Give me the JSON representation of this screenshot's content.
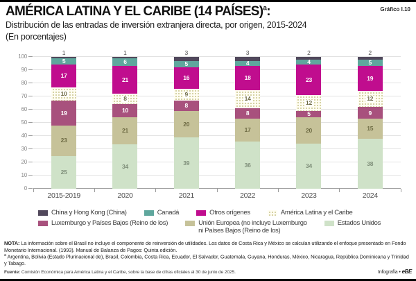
{
  "header": {
    "title": "AMÉRICA LATINA Y EL CARIBE (14 PAÍSES)",
    "title_marker": "a",
    "title_suffix": ":",
    "graphic_label": "Gráfico I.10",
    "subtitle": "Distribución de las entradas de inversión extranjera directa, por origen, 2015-2024",
    "unit_line": "(En porcentajes)"
  },
  "chart_data": {
    "type": "bar",
    "stacked": true,
    "title": "Distribución de las entradas de inversión extranjera directa, por origen, 2015-2024",
    "unit": "porcentajes",
    "xlabel": "",
    "ylabel": "",
    "ylim": [
      0,
      100
    ],
    "yticks": [
      0,
      10,
      20,
      30,
      40,
      50,
      60,
      70,
      80,
      90,
      100
    ],
    "grid": true,
    "legend_position": "bottom",
    "categories": [
      "2015-2019",
      "2020",
      "2021",
      "2022",
      "2023",
      "2024"
    ],
    "series": [
      {
        "key": "estados-unidos",
        "name": "Estados Unidos",
        "color": "#cfe2c8",
        "label_color": "#7f8f7a",
        "values": [
          25,
          34,
          39,
          36,
          34,
          38
        ]
      },
      {
        "key": "union-europea",
        "name": "Unión Europea (no incluye Luxemburgo ni Países Bajos (Reino de los)",
        "color": "#c6c299",
        "label_color": "#6d6a43",
        "values": [
          23,
          21,
          20,
          17,
          20,
          15
        ]
      },
      {
        "key": "luxemburgo-paises-bajos",
        "name": "Luxemburgo y Países Bajos (Reino de los)",
        "color": "#a8517d",
        "label_color": "#ffffff",
        "values": [
          19,
          10,
          8,
          8,
          5,
          9
        ]
      },
      {
        "key": "america-latina-caribe",
        "name": "América Latina y el Caribe",
        "color": "#c9c38a",
        "pattern": "dots",
        "label_color": "#6d6a43",
        "values": [
          10,
          8,
          9,
          14,
          12,
          12
        ]
      },
      {
        "key": "otros-origenes",
        "name": "Otros orígenes",
        "color": "#c00d8e",
        "label_color": "#ffffff",
        "values": [
          17,
          21,
          16,
          18,
          23,
          19
        ]
      },
      {
        "key": "canada",
        "name": "Canadá",
        "color": "#5fa79d",
        "label_color": "#ffffff",
        "values": [
          5,
          6,
          5,
          4,
          4,
          5
        ]
      },
      {
        "key": "china-hong-kong",
        "name": "China y Hong Kong (China)",
        "color": "#51485c",
        "label_color": "#4a4a4a",
        "label_outside": true,
        "values": [
          1,
          1,
          3,
          3,
          2,
          2
        ]
      }
    ]
  },
  "legend": {
    "rows": [
      [
        {
          "series": 6,
          "lines": [
            "China y Hong Kong (China)"
          ]
        },
        {
          "series": 5,
          "lines": [
            "Canadá"
          ]
        },
        {
          "series": 4,
          "lines": [
            "Otros orígenes"
          ]
        },
        {
          "series": 3,
          "lines": [
            "América Latina y el Caribe"
          ]
        }
      ],
      [
        {
          "series": 2,
          "lines": [
            "Luxemburgo y Países Bajos (Reino de los)"
          ]
        },
        {
          "series": 1,
          "lines": [
            "Unión Europea (no incluye Luxemburgo",
            "ni Países Bajos (Reino de los)"
          ]
        },
        {
          "series": 0,
          "lines": [
            "Estados Unidos"
          ]
        }
      ]
    ]
  },
  "notes": {
    "nota_label": "NOTA:",
    "nota_text": "La información sobre el Brasil no incluye el componente de reinversión de utilidades. Los datos de Costa Rica y México se calculan utilizando el enfoque presentado en Fondo Monetario Internacional. (1993). Manual de Balanza de Pagos: Quinta edición.",
    "footnote_marker": "a",
    "footnote_text": "Argentina, Bolivia (Estado Plurinacional de), Brasil, Colombia, Costa Rica, Ecuador, El Salvador, Guatemala, Guyana, Honduras, México, Nicaragua, República Dominicana y Trinidad y Tabago.",
    "fuente_label": "Fuente:",
    "fuente_text": "Comisión Económica para América Latina y el Caribe, sobre la base de cifras oficiales al 30 de junio de 2025.",
    "credit": "Infografía •",
    "credit_logo": "eBE"
  }
}
